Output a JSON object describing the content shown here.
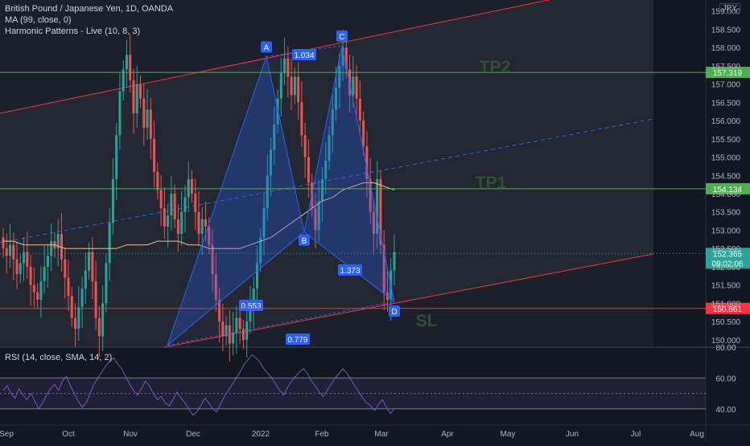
{
  "header": {
    "symbol_title": "British Pound / Japanese Yen, 1D, OANDA",
    "indicator_ma": "MA (99, close, 0)",
    "indicator_harmonic": "Harmonic Patterns - Live (10, 8, 3)",
    "currency_badge": "JPY"
  },
  "rsi_panel": {
    "label": "RSI (14, close, SMA, 14, 2)"
  },
  "colors": {
    "background": "#131722",
    "up": "#26a69a",
    "down": "#ef5350",
    "channel": "#f23645",
    "tp_line": "#4caf50",
    "sl_line": "#f23645",
    "pattern": "#2962ff",
    "ma": "#f0c090",
    "rsi": "#7e57c2",
    "label_text": "#2e5233"
  },
  "chart_data": [
    {
      "type": "candlestick",
      "title": "British Pound / Japanese Yen, 1D, OANDA",
      "price_axis": {
        "ticks": [
          150.0,
          150.5,
          151.0,
          151.5,
          152.0,
          152.5,
          153.0,
          153.5,
          154.0,
          154.5,
          155.0,
          155.5,
          156.0,
          156.5,
          157.0,
          157.5,
          158.0,
          158.5,
          159.0
        ],
        "tick_labels": [
          "150.000",
          "150.500",
          "151.000",
          "151.500",
          "152.000",
          "152.500",
          "153.000",
          "153.500",
          "154.000",
          "154.500",
          "155.000",
          "155.500",
          "156.000",
          "156.500",
          "157.000",
          "157.500",
          "158.000",
          "158.500",
          "159.000"
        ],
        "ylim": [
          149.8,
          159.3
        ]
      },
      "time_axis": {
        "ticks": [
          "Sep",
          "Oct",
          "Nov",
          "Dec",
          "2022",
          "Feb",
          "Mar",
          "Apr",
          "May",
          "Jun",
          "Jul",
          "Aug"
        ]
      },
      "candles_close": [
        152.5,
        152.3,
        152.6,
        152.2,
        151.8,
        152.1,
        152.4,
        152.0,
        151.5,
        151.3,
        151.1,
        151.6,
        152.0,
        152.3,
        152.7,
        152.5,
        152.9,
        152.2,
        151.7,
        151.2,
        150.6,
        150.3,
        150.9,
        151.4,
        151.9,
        152.4,
        151.6,
        150.6,
        150.1,
        151.0,
        152.1,
        153.2,
        154.4,
        155.6,
        156.8,
        157.4,
        157.8,
        157.1,
        156.2,
        157.0,
        156.6,
        155.8,
        156.3,
        155.5,
        154.6,
        154.1,
        153.6,
        153.1,
        153.4,
        154.0,
        153.3,
        152.9,
        153.5,
        153.9,
        154.4,
        154.0,
        153.5,
        152.9,
        153.3,
        153.1,
        152.6,
        151.8,
        151.1,
        150.5,
        150.1,
        150.4,
        149.9,
        150.2,
        150.6,
        150.3,
        150.0,
        150.5,
        150.9,
        151.4,
        152.1,
        152.8,
        153.6,
        154.5,
        155.2,
        155.9,
        156.6,
        157.3,
        157.7,
        157.2,
        156.7,
        157.2,
        156.5,
        155.6,
        155.0,
        154.3,
        153.6,
        153.0,
        153.8,
        154.4,
        154.9,
        155.6,
        156.3,
        156.9,
        157.5,
        158.0,
        157.4,
        156.7,
        157.2,
        156.6,
        156.0,
        155.3,
        154.4,
        153.5,
        152.9,
        154.4,
        152.6,
        151.3,
        151.1,
        151.9,
        152.4
      ],
      "series": [
        {
          "name": "MA (99, close, 0)",
          "values": [
            152.7,
            152.7,
            152.6,
            152.6,
            152.6,
            152.6,
            152.5,
            152.5,
            152.5,
            152.5,
            152.5,
            152.5,
            152.6,
            152.6,
            152.6,
            152.7,
            152.7,
            152.7,
            152.6,
            152.6,
            152.5,
            152.5,
            152.5,
            152.5,
            152.6,
            152.7,
            152.8,
            153.0,
            153.2,
            153.4,
            153.6,
            153.8,
            153.9,
            154.1,
            154.2,
            154.3,
            154.3,
            154.2,
            154.1
          ]
        }
      ],
      "pattern_points": [
        {
          "label": "A",
          "price": 157.75
        },
        {
          "label": "B",
          "price": 152.95
        },
        {
          "label": "C",
          "price": 158.05
        },
        {
          "label": "D",
          "price": 151.05
        }
      ],
      "ratio_labels": [
        "1.034",
        "1.373",
        "0.553",
        "0.779"
      ],
      "price_lines": [
        {
          "label": "TP2",
          "value": 157.319,
          "value_text": "157.319"
        },
        {
          "label": "TP1",
          "value": 154.134,
          "value_text": "154.134"
        },
        {
          "label": "SL",
          "value": 150.861,
          "value_text": "150.861"
        }
      ],
      "last_price": {
        "value": 152.365,
        "value_text": "152.365",
        "countdown": "09:02:06"
      }
    },
    {
      "type": "line",
      "title": "RSI (14, close, SMA, 14, 2)",
      "ylim": [
        30,
        80
      ],
      "tick_labels": [
        "80.00",
        "60.00",
        "40.00"
      ],
      "band": [
        40,
        60
      ],
      "series": [
        {
          "name": "RSI",
          "values": [
            52,
            55,
            50,
            47,
            53,
            49,
            46,
            50,
            45,
            40,
            44,
            49,
            53,
            56,
            52,
            58,
            61,
            55,
            50,
            45,
            41,
            44,
            50,
            56,
            60,
            64,
            68,
            71,
            73,
            69,
            66,
            61,
            56,
            52,
            49,
            53,
            58,
            55,
            50,
            46,
            48,
            44,
            42,
            46,
            51,
            47,
            44,
            40,
            36,
            38,
            42,
            47,
            44,
            40,
            38,
            43,
            48,
            52,
            56,
            60,
            64,
            69,
            72,
            75,
            73,
            70,
            66,
            63,
            60,
            56,
            52,
            49,
            54,
            58,
            61,
            64,
            66,
            63,
            58,
            55,
            51,
            48,
            52,
            56,
            60,
            63,
            66,
            63,
            59,
            55,
            51,
            47,
            44,
            42,
            39,
            43,
            46,
            41,
            37,
            40
          ]
        }
      ]
    }
  ]
}
